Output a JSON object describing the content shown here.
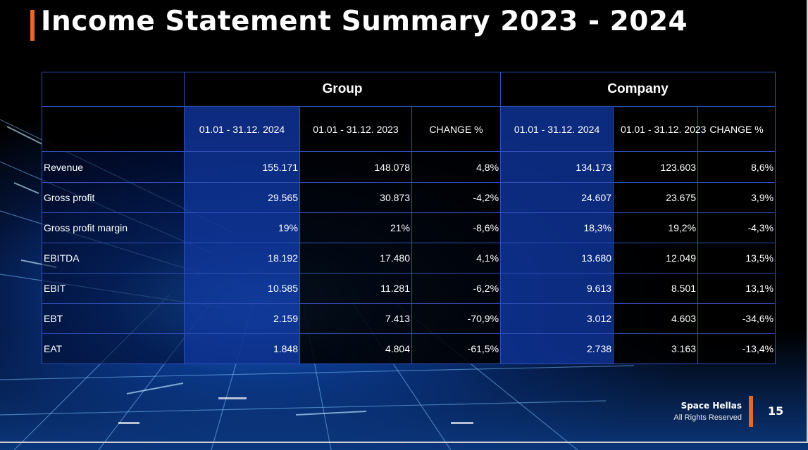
{
  "slide": {
    "title": "Income Statement Summary 2023 - 2024",
    "accent_color": "#e46a2a",
    "page_number": "15"
  },
  "table": {
    "groups": [
      "Group",
      "Company"
    ],
    "columns": [
      "01.01 - 31.12. 2024",
      "01.01 - 31.12. 2023",
      "CHANGE  %",
      "01.01 - 31.12. 2024",
      "01.01 - 31.12. 2023",
      "CHANGE  %"
    ],
    "rows": [
      {
        "label": "Revenue",
        "values": [
          "155.171",
          "148.078",
          "4,8%",
          "134.173",
          "123.603",
          "8,6%"
        ]
      },
      {
        "label": "Gross profit",
        "values": [
          "29.565",
          "30.873",
          "-4,2%",
          "24.607",
          "23.675",
          "3,9%"
        ]
      },
      {
        "label": "Gross profit margin",
        "values": [
          "19%",
          "21%",
          "-8,6%",
          "18,3%",
          "19,2%",
          "-4,3%"
        ]
      },
      {
        "label": "EBITDA",
        "values": [
          "18.192",
          "17.480",
          "4,1%",
          "13.680",
          "12.049",
          "13,5%"
        ]
      },
      {
        "label": "EBIT",
        "values": [
          "10.585",
          "11.281",
          "-6,2%",
          "9.613",
          "8.501",
          "13,1%"
        ]
      },
      {
        "label": "EBT",
        "values": [
          "2.159",
          "7.413",
          "-70,9%",
          "3.012",
          "4.603",
          "-34,6%"
        ]
      },
      {
        "label": "EAT",
        "values": [
          "1.848",
          "4.804",
          "-61,5%",
          "2.738",
          "3.163",
          "-13,4%"
        ]
      }
    ]
  },
  "footer": {
    "brand": "Space Hellas",
    "rights": "All Rights Reserved"
  }
}
